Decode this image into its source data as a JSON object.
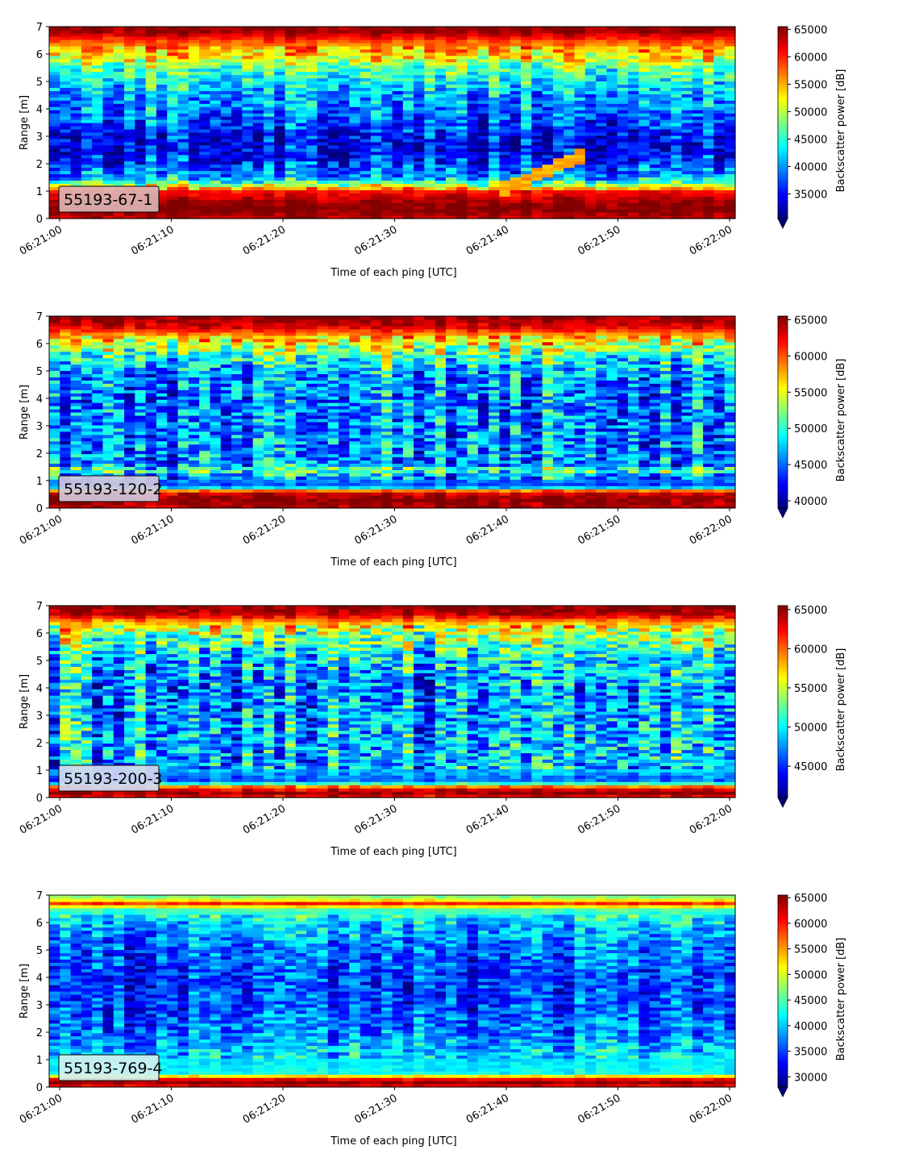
{
  "figure": {
    "xlabel": "Time of each ping [UTC]",
    "ylabel": "Range [m]",
    "colorbar_label": "Backscatter power [dB]",
    "colormap": "jet"
  },
  "chart_data": [
    {
      "type": "heatmap",
      "station": "55193-67-1",
      "label_box_color": "#dcb4b4",
      "xlabel": "Time of each ping [UTC]",
      "ylabel": "Range [m]",
      "x_ticks": [
        "06:21:00",
        "06:21:10",
        "06:21:20",
        "06:21:30",
        "06:21:40",
        "06:21:50",
        "06:22:00"
      ],
      "y_ticks": [
        0,
        1,
        2,
        3,
        4,
        5,
        6,
        7
      ],
      "ylim": [
        0,
        7
      ],
      "colorbar_label": "Backscatter power [dB]",
      "colorbar_ticks": [
        35000,
        40000,
        45000,
        50000,
        55000,
        60000,
        65000
      ],
      "colorbar_range": [
        30500,
        65500
      ],
      "range_profile_m": [
        0,
        0.25,
        0.5,
        1.0,
        1.25,
        1.5,
        2.0,
        2.5,
        3.0,
        3.5,
        4.0,
        4.5,
        5.0,
        5.5,
        5.8,
        6.1,
        6.5,
        6.8,
        7.0
      ],
      "mean_power_profile": [
        63000,
        65500,
        65500,
        61000,
        49000,
        41000,
        37500,
        34500,
        35500,
        38000,
        40000,
        41000,
        44000,
        47000,
        52000,
        55000,
        59000,
        64500,
        65500
      ]
    },
    {
      "type": "heatmap",
      "station": "55193-120-2",
      "label_box_color": "#d2c8dc",
      "xlabel": "Time of each ping [UTC]",
      "ylabel": "Range [m]",
      "x_ticks": [
        "06:21:00",
        "06:21:10",
        "06:21:20",
        "06:21:30",
        "06:21:40",
        "06:21:50",
        "06:22:00"
      ],
      "y_ticks": [
        0,
        1,
        2,
        3,
        4,
        5,
        6,
        7
      ],
      "ylim": [
        0,
        7
      ],
      "colorbar_label": "Backscatter power [dB]",
      "colorbar_ticks": [
        40000,
        45000,
        50000,
        55000,
        60000,
        65000
      ],
      "colorbar_range": [
        39000,
        65500
      ],
      "range_profile_m": [
        0,
        0.3,
        0.6,
        0.8,
        1.2,
        1.4,
        1.6,
        2.0,
        3.0,
        4.0,
        5.0,
        5.5,
        6.0,
        6.3,
        6.6,
        7.0
      ],
      "mean_power_profile": [
        64000,
        65500,
        63000,
        44000,
        47000,
        52000,
        46000,
        46500,
        46000,
        45500,
        47000,
        50000,
        55000,
        58000,
        63000,
        65500
      ]
    },
    {
      "type": "heatmap",
      "station": "55193-200-3",
      "label_box_color": "#d2d7f0",
      "xlabel": "Time of each ping [UTC]",
      "ylabel": "Range [m]",
      "x_ticks": [
        "06:21:00",
        "06:21:10",
        "06:21:20",
        "06:21:30",
        "06:21:40",
        "06:21:50",
        "06:22:00"
      ],
      "y_ticks": [
        0,
        1,
        2,
        3,
        4,
        5,
        6,
        7
      ],
      "ylim": [
        0,
        7
      ],
      "colorbar_label": "Backscatter power [dB]",
      "colorbar_ticks": [
        45000,
        50000,
        55000,
        60000,
        65000
      ],
      "colorbar_range": [
        41000,
        65500
      ],
      "range_profile_m": [
        0,
        0.2,
        0.4,
        0.6,
        1.0,
        2.0,
        3.0,
        4.0,
        5.0,
        5.5,
        6.0,
        6.4,
        6.7,
        7.0
      ],
      "mean_power_profile": [
        62000,
        65500,
        60000,
        46000,
        48500,
        48500,
        48000,
        47500,
        49000,
        51000,
        54000,
        58000,
        64000,
        65500
      ]
    },
    {
      "type": "heatmap",
      "station": "55193-769-4",
      "label_box_color": "#d2f0f0",
      "xlabel": "Time of each ping [UTC]",
      "ylabel": "Range [m]",
      "x_ticks": [
        "06:21:00",
        "06:21:10",
        "06:21:20",
        "06:21:30",
        "06:21:40",
        "06:21:50",
        "06:22:00"
      ],
      "y_ticks": [
        0,
        1,
        2,
        3,
        4,
        5,
        6,
        7
      ],
      "ylim": [
        0,
        7
      ],
      "colorbar_label": "Backscatter power [dB]",
      "colorbar_ticks": [
        30000,
        35000,
        40000,
        45000,
        50000,
        55000,
        60000,
        65000
      ],
      "colorbar_range": [
        28000,
        65500
      ],
      "range_profile_m": [
        0,
        0.2,
        0.35,
        0.5,
        1.0,
        1.5,
        2.0,
        3.0,
        4.0,
        5.0,
        5.5,
        6.0,
        6.5,
        6.7,
        6.85,
        7.0
      ],
      "mean_power_profile": [
        60000,
        65500,
        58000,
        42000,
        41000,
        39000,
        37000,
        35000,
        34500,
        36000,
        38000,
        40000,
        45000,
        60000,
        50000,
        45000
      ]
    }
  ]
}
